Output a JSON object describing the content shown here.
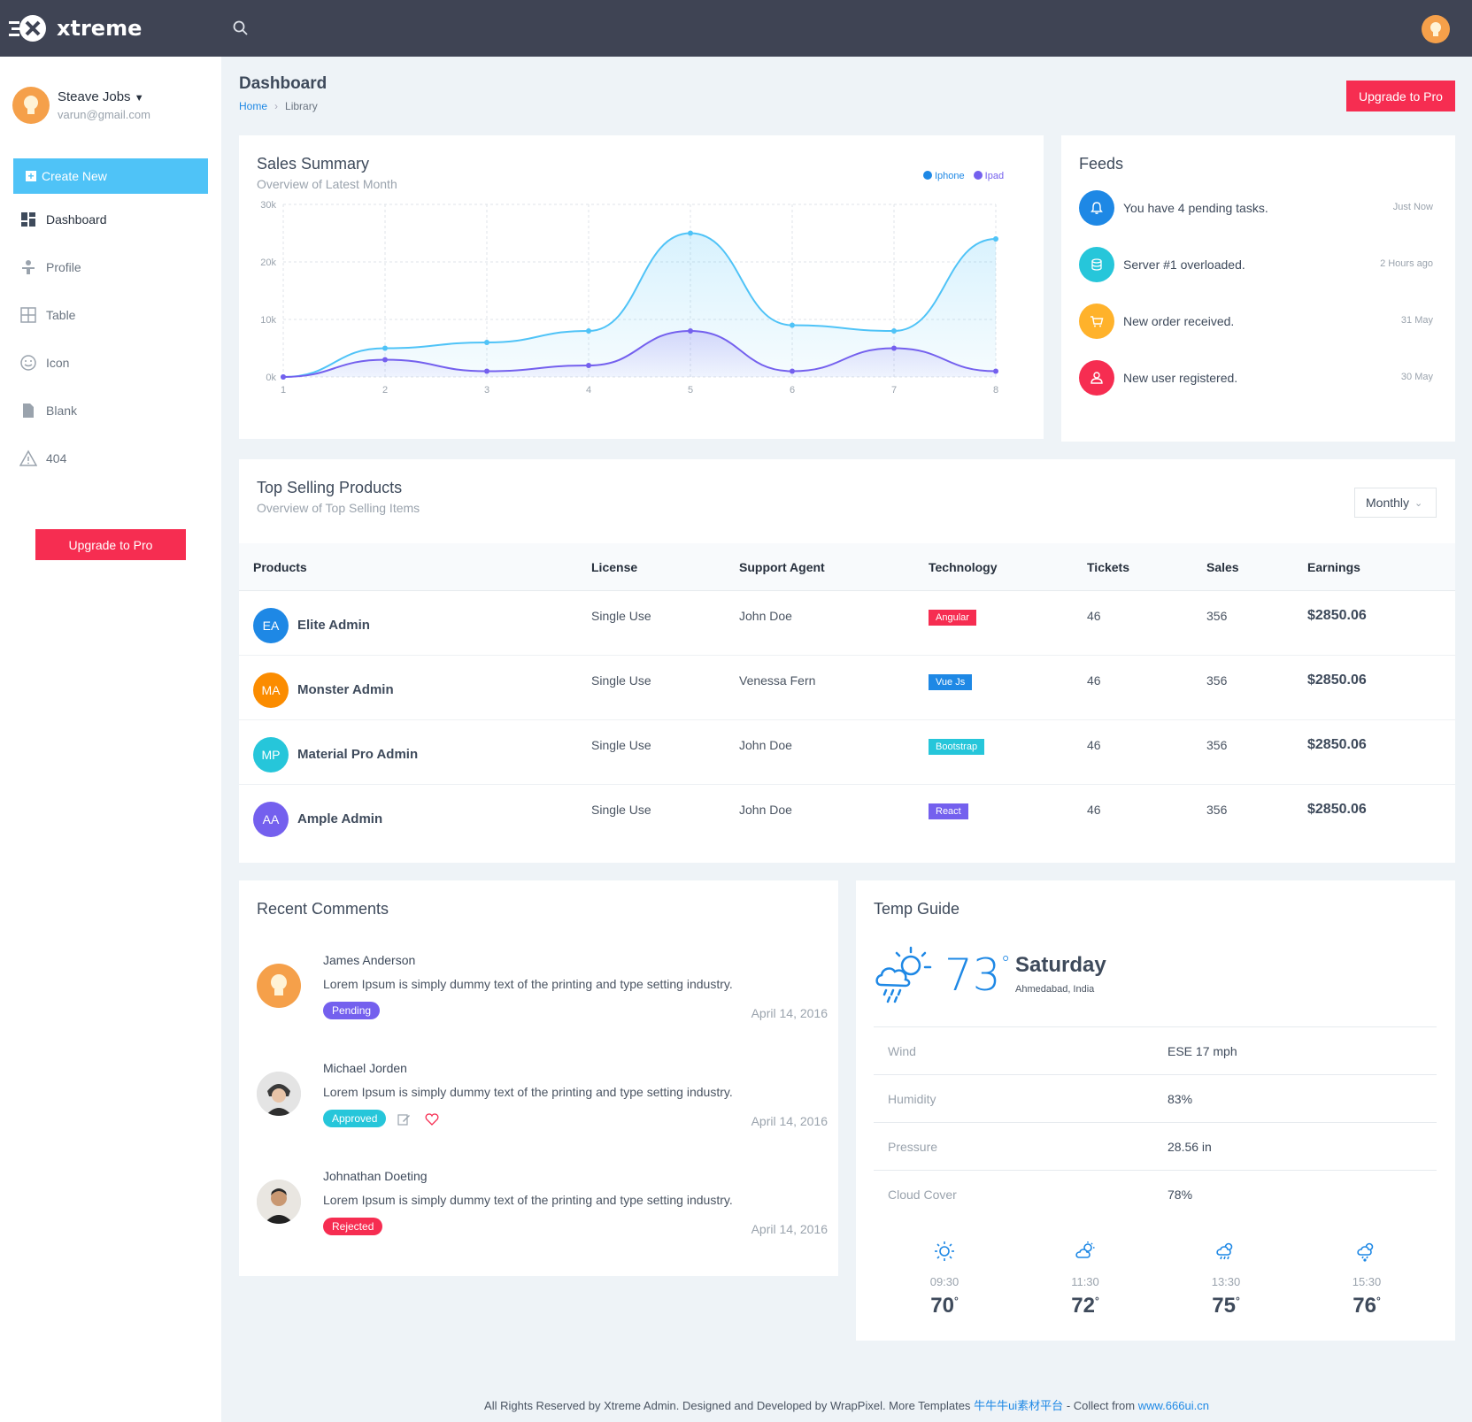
{
  "app": {
    "brand": "xtreme"
  },
  "user": {
    "name": "Steave Jobs",
    "email": "varun@gmail.com"
  },
  "sidebar": {
    "create_new": "Create New",
    "items": [
      {
        "label": "Dashboard",
        "icon": "dashboard-icon"
      },
      {
        "label": "Profile",
        "icon": "profile-icon"
      },
      {
        "label": "Table",
        "icon": "table-icon"
      },
      {
        "label": "Icon",
        "icon": "smile-icon"
      },
      {
        "label": "Blank",
        "icon": "file-icon"
      },
      {
        "label": "404",
        "icon": "warning-icon"
      }
    ],
    "upgrade": "Upgrade to Pro"
  },
  "header": {
    "title": "Dashboard",
    "breadcrumb": [
      "Home",
      "Library"
    ],
    "upgrade": "Upgrade to Pro"
  },
  "sales": {
    "title": "Sales Summary",
    "subtitle": "Overview of Latest Month",
    "legend": [
      "Iphone",
      "Ipad"
    ]
  },
  "chart_data": {
    "type": "area",
    "x": [
      1,
      2,
      3,
      4,
      5,
      6,
      7,
      8
    ],
    "series": [
      {
        "name": "Iphone",
        "values": [
          0,
          5000,
          6000,
          8000,
          25000,
          9000,
          8000,
          24000
        ],
        "color": "#4fc3f7"
      },
      {
        "name": "Ipad",
        "values": [
          0,
          3000,
          1000,
          2000,
          8000,
          1000,
          5000,
          1000
        ],
        "color": "#7460ee"
      }
    ],
    "yticks": [
      "0k",
      "10k",
      "20k",
      "30k"
    ],
    "ylim": [
      0,
      30000
    ],
    "grid": true,
    "legend_position": "top-right"
  },
  "feeds": {
    "title": "Feeds",
    "items": [
      {
        "text": "You have 4 pending tasks.",
        "time": "Just Now",
        "icon": "bell-icon",
        "color": "#1e88e5"
      },
      {
        "text": "Server #1 overloaded.",
        "time": "2 Hours ago",
        "icon": "database-icon",
        "color": "#26c6da"
      },
      {
        "text": "New order received.",
        "time": "31 May",
        "icon": "cart-icon",
        "color": "#ffb22b"
      },
      {
        "text": "New user registered.",
        "time": "30 May",
        "icon": "user-icon",
        "color": "#f62d51"
      }
    ]
  },
  "products": {
    "title": "Top Selling Products",
    "subtitle": "Overview of Top Selling Items",
    "filter": "Monthly",
    "columns": [
      "Products",
      "License",
      "Support Agent",
      "Technology",
      "Tickets",
      "Sales",
      "Earnings"
    ],
    "rows": [
      {
        "initials": "EA",
        "name": "Elite Admin",
        "license": "Single Use",
        "agent": "John Doe",
        "tech": "Angular",
        "tickets": "46",
        "sales": "356",
        "earnings": "$2850.06",
        "color": "#1e88e5",
        "tech_color": "#f62d51"
      },
      {
        "initials": "MA",
        "name": "Monster Admin",
        "license": "Single Use",
        "agent": "Venessa Fern",
        "tech": "Vue Js",
        "tickets": "46",
        "sales": "356",
        "earnings": "$2850.06",
        "color": "#fb8c00",
        "tech_color": "#1e88e5"
      },
      {
        "initials": "MP",
        "name": "Material Pro Admin",
        "license": "Single Use",
        "agent": "John Doe",
        "tech": "Bootstrap",
        "tickets": "46",
        "sales": "356",
        "earnings": "$2850.06",
        "color": "#26c6da",
        "tech_color": "#26c6da"
      },
      {
        "initials": "AA",
        "name": "Ample Admin",
        "license": "Single Use",
        "agent": "John Doe",
        "tech": "React",
        "tickets": "46",
        "sales": "356",
        "earnings": "$2850.06",
        "color": "#7460ee",
        "tech_color": "#7460ee"
      }
    ]
  },
  "comments": {
    "title": "Recent Comments",
    "items": [
      {
        "name": "James Anderson",
        "text": "Lorem Ipsum is simply dummy text of the printing and type setting industry.",
        "status": "Pending",
        "date": "April 14, 2016",
        "status_color": "#7460ee"
      },
      {
        "name": "Michael Jorden",
        "text": "Lorem Ipsum is simply dummy text of the printing and type setting industry.",
        "status": "Approved",
        "date": "April 14, 2016",
        "status_color": "#26c6da"
      },
      {
        "name": "Johnathan Doeting",
        "text": "Lorem Ipsum is simply dummy text of the printing and type setting industry.",
        "status": "Rejected",
        "date": "April 14, 2016",
        "status_color": "#f62d51"
      }
    ]
  },
  "weather": {
    "title": "Temp Guide",
    "temp": "73",
    "day": "Saturday",
    "location": "Ahmedabad, India",
    "details": [
      {
        "key": "Wind",
        "value": "ESE 17 mph"
      },
      {
        "key": "Humidity",
        "value": "83%"
      },
      {
        "key": "Pressure",
        "value": "28.56 in"
      },
      {
        "key": "Cloud Cover",
        "value": "78%"
      }
    ],
    "forecast": [
      {
        "time": "09:30",
        "temp": "70",
        "icon": "sun-icon"
      },
      {
        "time": "11:30",
        "temp": "72",
        "icon": "cloud-sun-icon"
      },
      {
        "time": "13:30",
        "temp": "75",
        "icon": "rain-icon"
      },
      {
        "time": "15:30",
        "temp": "76",
        "icon": "storm-icon"
      }
    ]
  },
  "footer": {
    "text": "All Rights Reserved by Xtreme Admin. Designed and Developed by WrapPixel. More Templates",
    "link1": "牛牛牛ui素材平台",
    "mid": "- Collect from",
    "link2": "www.666ui.cn"
  }
}
